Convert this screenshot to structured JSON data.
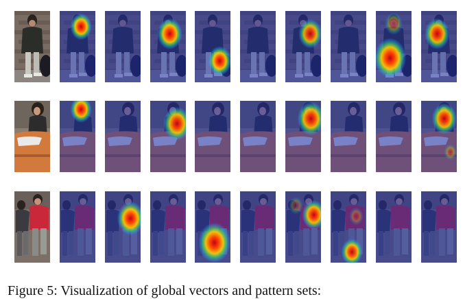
{
  "figure": {
    "rows": [
      {
        "scene": "person-dark-jacket",
        "tiles": [
          {
            "kind": "original"
          },
          {
            "kind": "heatmap",
            "spots": [
              {
                "cx": 0.6,
                "cy": 0.22,
                "r": 0.3,
                "level": 1.0
              }
            ]
          },
          {
            "kind": "heatmap",
            "spots": []
          },
          {
            "kind": "heatmap",
            "spots": [
              {
                "cx": 0.55,
                "cy": 0.32,
                "r": 0.35,
                "level": 1.0
              }
            ]
          },
          {
            "kind": "heatmap",
            "spots": [
              {
                "cx": 0.7,
                "cy": 0.7,
                "r": 0.33,
                "level": 1.0
              }
            ]
          },
          {
            "kind": "heatmap",
            "spots": []
          },
          {
            "kind": "heatmap",
            "spots": [
              {
                "cx": 0.7,
                "cy": 0.32,
                "r": 0.33,
                "level": 0.9
              }
            ]
          },
          {
            "kind": "heatmap",
            "spots": []
          },
          {
            "kind": "heatmap",
            "spots": [
              {
                "cx": 0.4,
                "cy": 0.66,
                "r": 0.45,
                "level": 1.0
              },
              {
                "cx": 0.5,
                "cy": 0.18,
                "r": 0.25,
                "level": 0.45
              }
            ]
          },
          {
            "kind": "heatmap",
            "spots": [
              {
                "cx": 0.45,
                "cy": 0.32,
                "r": 0.35,
                "level": 0.95
              }
            ]
          }
        ]
      },
      {
        "scene": "person-car",
        "tiles": [
          {
            "kind": "original"
          },
          {
            "kind": "heatmap",
            "spots": [
              {
                "cx": 0.6,
                "cy": 0.12,
                "r": 0.3,
                "level": 1.0
              }
            ]
          },
          {
            "kind": "heatmap",
            "spots": []
          },
          {
            "kind": "heatmap",
            "spots": [
              {
                "cx": 0.75,
                "cy": 0.32,
                "r": 0.38,
                "level": 0.95
              }
            ]
          },
          {
            "kind": "heatmap",
            "spots": []
          },
          {
            "kind": "heatmap",
            "spots": []
          },
          {
            "kind": "heatmap",
            "spots": [
              {
                "cx": 0.72,
                "cy": 0.25,
                "r": 0.38,
                "level": 0.95
              }
            ]
          },
          {
            "kind": "heatmap",
            "spots": []
          },
          {
            "kind": "heatmap",
            "spots": []
          },
          {
            "kind": "heatmap",
            "spots": [
              {
                "cx": 0.65,
                "cy": 0.25,
                "r": 0.35,
                "level": 0.95
              },
              {
                "cx": 0.82,
                "cy": 0.72,
                "r": 0.18,
                "level": 0.4
              }
            ]
          }
        ]
      },
      {
        "scene": "two-people",
        "tiles": [
          {
            "kind": "original"
          },
          {
            "kind": "heatmap",
            "spots": []
          },
          {
            "kind": "heatmap",
            "spots": [
              {
                "cx": 0.72,
                "cy": 0.38,
                "r": 0.38,
                "level": 1.0
              }
            ]
          },
          {
            "kind": "heatmap",
            "spots": []
          },
          {
            "kind": "heatmap",
            "spots": [
              {
                "cx": 0.55,
                "cy": 0.72,
                "r": 0.45,
                "level": 1.0
              }
            ]
          },
          {
            "kind": "heatmap",
            "spots": []
          },
          {
            "kind": "heatmap",
            "spots": [
              {
                "cx": 0.8,
                "cy": 0.33,
                "r": 0.33,
                "level": 0.95
              },
              {
                "cx": 0.3,
                "cy": 0.2,
                "r": 0.2,
                "level": 0.3
              }
            ]
          },
          {
            "kind": "heatmap",
            "spots": [
              {
                "cx": 0.6,
                "cy": 0.85,
                "r": 0.3,
                "level": 0.95
              },
              {
                "cx": 0.72,
                "cy": 0.35,
                "r": 0.2,
                "level": 0.35
              }
            ]
          },
          {
            "kind": "heatmap",
            "spots": []
          },
          {
            "kind": "heatmap",
            "spots": []
          }
        ]
      }
    ]
  },
  "caption": {
    "text": "Figure 5: Visualization of global vectors and pattern sets:"
  }
}
